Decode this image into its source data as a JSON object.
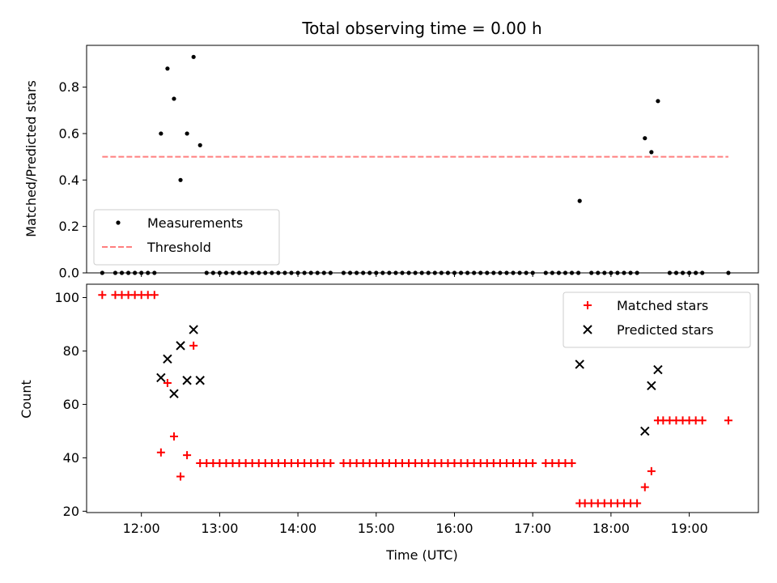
{
  "chart_data": [
    {
      "type": "scatter",
      "title": "Total observing time = 0.00 h",
      "xlabel": "",
      "ylabel": "Matched/Predicted stars",
      "xlim": [
        "11:18",
        "19:53"
      ],
      "ylim": [
        0,
        0.98
      ],
      "yticks": [
        0,
        0.2,
        0.4,
        0.6,
        0.8
      ],
      "ytick_labels": [
        "0.0",
        "0.2",
        "0.4",
        "0.6",
        "0.8"
      ],
      "legend_position": "lower-left",
      "series": [
        {
          "name": "Measurements",
          "color": "#000000",
          "marker": "dot",
          "points": [
            [
              "11:30",
              0
            ],
            [
              "11:40",
              0
            ],
            [
              "11:45",
              0
            ],
            [
              "11:50",
              0
            ],
            [
              "11:55",
              0
            ],
            [
              "12:00",
              0
            ],
            [
              "12:05",
              0
            ],
            [
              "12:10",
              0
            ],
            [
              "12:15",
              0.6
            ],
            [
              "12:20",
              0.88
            ],
            [
              "12:25",
              0.75
            ],
            [
              "12:30",
              0.4
            ],
            [
              "12:35",
              0.6
            ],
            [
              "12:40",
              0.93
            ],
            [
              "12:45",
              0.55
            ],
            [
              "12:50",
              0
            ],
            [
              "12:55",
              0
            ],
            [
              "13:00",
              0
            ],
            [
              "13:05",
              0
            ],
            [
              "13:10",
              0
            ],
            [
              "13:15",
              0
            ],
            [
              "13:20",
              0
            ],
            [
              "13:25",
              0
            ],
            [
              "13:30",
              0
            ],
            [
              "13:35",
              0
            ],
            [
              "13:40",
              0
            ],
            [
              "13:45",
              0
            ],
            [
              "13:50",
              0
            ],
            [
              "13:55",
              0
            ],
            [
              "14:00",
              0
            ],
            [
              "14:05",
              0
            ],
            [
              "14:10",
              0
            ],
            [
              "14:15",
              0
            ],
            [
              "14:20",
              0
            ],
            [
              "14:25",
              0
            ],
            [
              "14:35",
              0
            ],
            [
              "14:40",
              0
            ],
            [
              "14:45",
              0
            ],
            [
              "14:50",
              0
            ],
            [
              "14:55",
              0
            ],
            [
              "15:00",
              0
            ],
            [
              "15:05",
              0
            ],
            [
              "15:10",
              0
            ],
            [
              "15:15",
              0
            ],
            [
              "15:20",
              0
            ],
            [
              "15:25",
              0
            ],
            [
              "15:30",
              0
            ],
            [
              "15:35",
              0
            ],
            [
              "15:40",
              0
            ],
            [
              "15:45",
              0
            ],
            [
              "15:50",
              0
            ],
            [
              "15:55",
              0
            ],
            [
              "16:00",
              0
            ],
            [
              "16:05",
              0
            ],
            [
              "16:10",
              0
            ],
            [
              "16:15",
              0
            ],
            [
              "16:20",
              0
            ],
            [
              "16:25",
              0
            ],
            [
              "16:30",
              0
            ],
            [
              "16:35",
              0
            ],
            [
              "16:40",
              0
            ],
            [
              "16:45",
              0
            ],
            [
              "16:50",
              0
            ],
            [
              "16:55",
              0
            ],
            [
              "17:00",
              0
            ],
            [
              "17:10",
              0
            ],
            [
              "17:15",
              0
            ],
            [
              "17:20",
              0
            ],
            [
              "17:25",
              0
            ],
            [
              "17:30",
              0
            ],
            [
              "17:35",
              0
            ],
            [
              "17:36",
              0.31
            ],
            [
              "17:45",
              0
            ],
            [
              "17:50",
              0
            ],
            [
              "17:55",
              0
            ],
            [
              "18:00",
              0
            ],
            [
              "18:05",
              0
            ],
            [
              "18:10",
              0
            ],
            [
              "18:15",
              0
            ],
            [
              "18:20",
              0
            ],
            [
              "18:26",
              0.58
            ],
            [
              "18:31",
              0.52
            ],
            [
              "18:36",
              0.74
            ],
            [
              "18:45",
              0
            ],
            [
              "18:50",
              0
            ],
            [
              "18:55",
              0
            ],
            [
              "19:00",
              0
            ],
            [
              "19:05",
              0
            ],
            [
              "19:10",
              0
            ],
            [
              "19:30",
              0
            ]
          ]
        },
        {
          "name": "Threshold",
          "color": "#ff7f7f",
          "style": "dashed",
          "points": [
            [
              "11:30",
              0.5
            ],
            [
              "19:30",
              0.5
            ]
          ]
        }
      ]
    },
    {
      "type": "scatter",
      "title": "",
      "xlabel": "Time (UTC)",
      "ylabel": "Count",
      "xlim": [
        "11:18",
        "19:53"
      ],
      "ylim": [
        19.5,
        105
      ],
      "yticks": [
        20,
        40,
        60,
        80,
        100
      ],
      "ytick_labels": [
        "20",
        "40",
        "60",
        "80",
        "100"
      ],
      "xticks": [
        "12:00",
        "13:00",
        "14:00",
        "15:00",
        "16:00",
        "17:00",
        "18:00",
        "19:00"
      ],
      "legend_position": "upper-right",
      "series": [
        {
          "name": "Matched stars",
          "color": "#ff0000",
          "marker": "plus",
          "points": [
            [
              "11:30",
              101
            ],
            [
              "11:40",
              101
            ],
            [
              "11:45",
              101
            ],
            [
              "11:50",
              101
            ],
            [
              "11:55",
              101
            ],
            [
              "12:00",
              101
            ],
            [
              "12:05",
              101
            ],
            [
              "12:10",
              101
            ],
            [
              "12:15",
              42
            ],
            [
              "12:20",
              68
            ],
            [
              "12:25",
              48
            ],
            [
              "12:30",
              33
            ],
            [
              "12:35",
              41
            ],
            [
              "12:40",
              82
            ],
            [
              "12:45",
              38
            ],
            [
              "12:50",
              38
            ],
            [
              "12:55",
              38
            ],
            [
              "13:00",
              38
            ],
            [
              "13:05",
              38
            ],
            [
              "13:10",
              38
            ],
            [
              "13:15",
              38
            ],
            [
              "13:20",
              38
            ],
            [
              "13:25",
              38
            ],
            [
              "13:30",
              38
            ],
            [
              "13:35",
              38
            ],
            [
              "13:40",
              38
            ],
            [
              "13:45",
              38
            ],
            [
              "13:50",
              38
            ],
            [
              "13:55",
              38
            ],
            [
              "14:00",
              38
            ],
            [
              "14:05",
              38
            ],
            [
              "14:10",
              38
            ],
            [
              "14:15",
              38
            ],
            [
              "14:20",
              38
            ],
            [
              "14:25",
              38
            ],
            [
              "14:35",
              38
            ],
            [
              "14:40",
              38
            ],
            [
              "14:45",
              38
            ],
            [
              "14:50",
              38
            ],
            [
              "14:55",
              38
            ],
            [
              "15:00",
              38
            ],
            [
              "15:05",
              38
            ],
            [
              "15:10",
              38
            ],
            [
              "15:15",
              38
            ],
            [
              "15:20",
              38
            ],
            [
              "15:25",
              38
            ],
            [
              "15:30",
              38
            ],
            [
              "15:35",
              38
            ],
            [
              "15:40",
              38
            ],
            [
              "15:45",
              38
            ],
            [
              "15:50",
              38
            ],
            [
              "15:55",
              38
            ],
            [
              "16:00",
              38
            ],
            [
              "16:05",
              38
            ],
            [
              "16:10",
              38
            ],
            [
              "16:15",
              38
            ],
            [
              "16:20",
              38
            ],
            [
              "16:25",
              38
            ],
            [
              "16:30",
              38
            ],
            [
              "16:35",
              38
            ],
            [
              "16:40",
              38
            ],
            [
              "16:45",
              38
            ],
            [
              "16:50",
              38
            ],
            [
              "16:55",
              38
            ],
            [
              "17:00",
              38
            ],
            [
              "17:10",
              38
            ],
            [
              "17:15",
              38
            ],
            [
              "17:20",
              38
            ],
            [
              "17:25",
              38
            ],
            [
              "17:30",
              38
            ],
            [
              "17:36",
              23
            ],
            [
              "17:40",
              23
            ],
            [
              "17:45",
              23
            ],
            [
              "17:50",
              23
            ],
            [
              "17:55",
              23
            ],
            [
              "18:00",
              23
            ],
            [
              "18:05",
              23
            ],
            [
              "18:10",
              23
            ],
            [
              "18:15",
              23
            ],
            [
              "18:20",
              23
            ],
            [
              "18:26",
              29
            ],
            [
              "18:31",
              35
            ],
            [
              "18:36",
              54
            ],
            [
              "18:40",
              54
            ],
            [
              "18:45",
              54
            ],
            [
              "18:50",
              54
            ],
            [
              "18:55",
              54
            ],
            [
              "19:00",
              54
            ],
            [
              "19:05",
              54
            ],
            [
              "19:10",
              54
            ],
            [
              "19:30",
              54
            ]
          ]
        },
        {
          "name": "Predicted stars",
          "color": "#000000",
          "marker": "x",
          "points": [
            [
              "12:15",
              70
            ],
            [
              "12:20",
              77
            ],
            [
              "12:25",
              64
            ],
            [
              "12:30",
              82
            ],
            [
              "12:35",
              69
            ],
            [
              "12:40",
              88
            ],
            [
              "12:45",
              69
            ],
            [
              "17:36",
              75
            ],
            [
              "18:26",
              50
            ],
            [
              "18:31",
              67
            ],
            [
              "18:36",
              73
            ]
          ]
        }
      ]
    }
  ]
}
